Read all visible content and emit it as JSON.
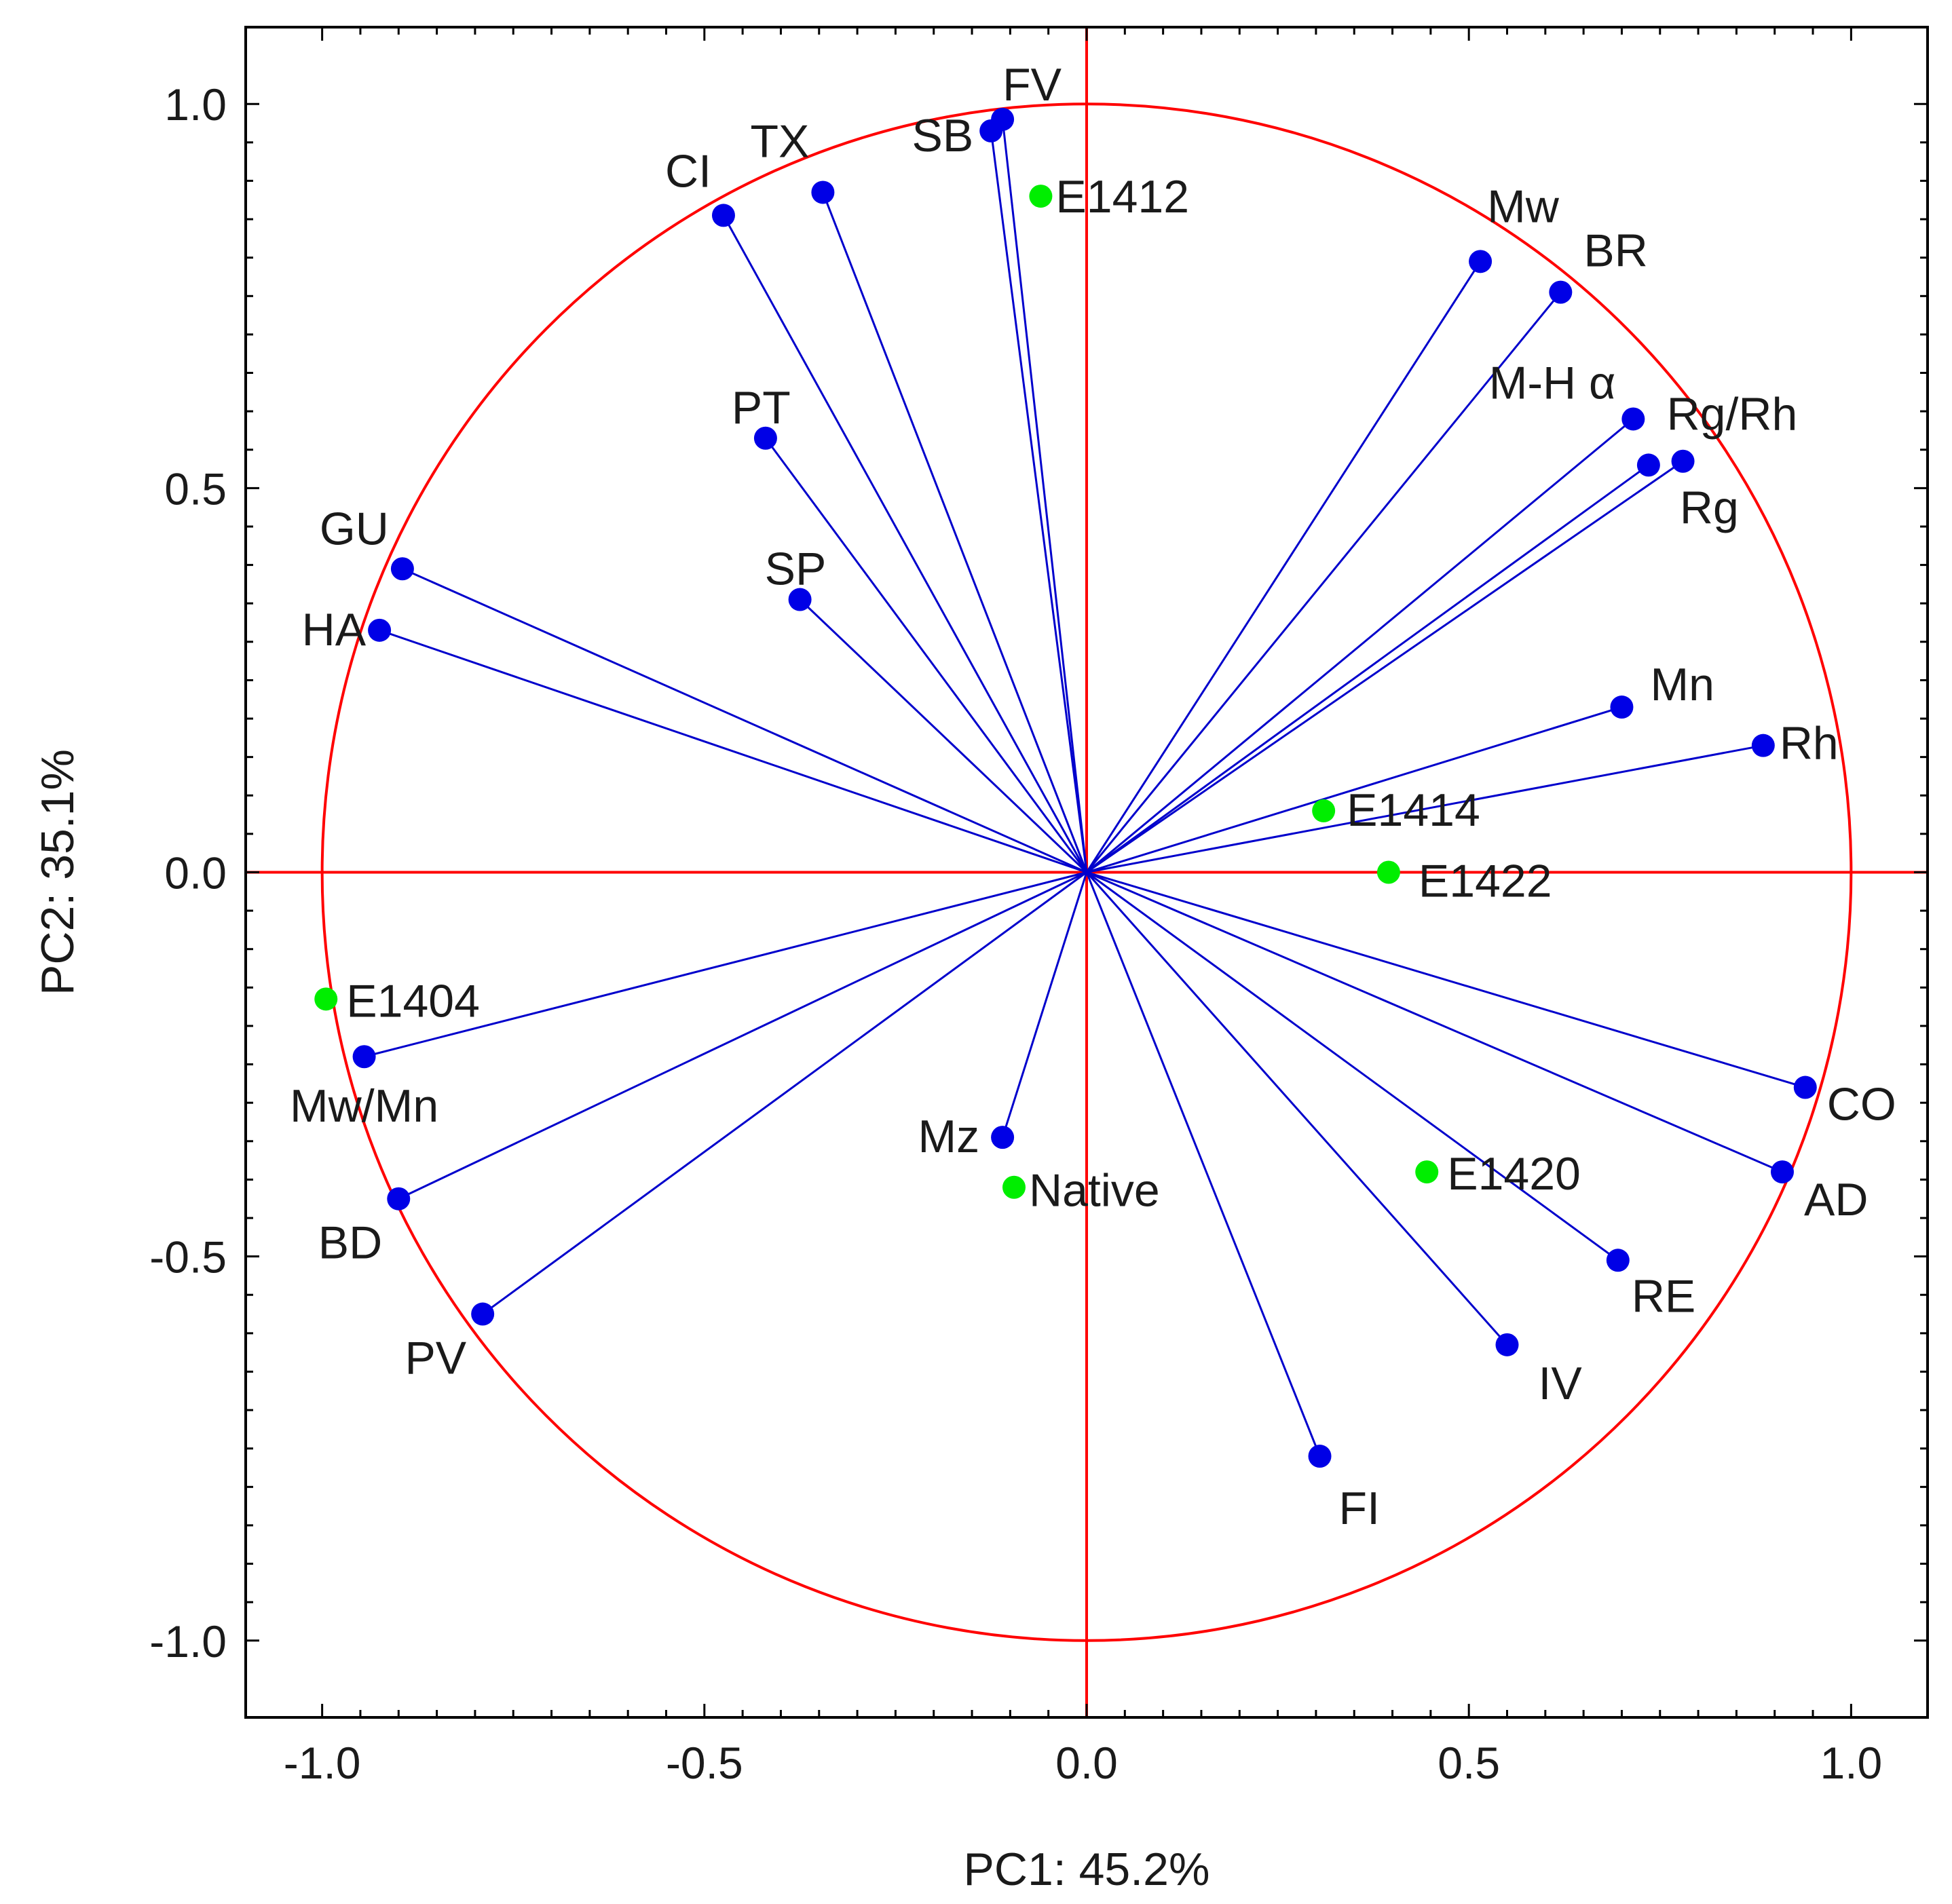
{
  "chart_data": {
    "type": "scatter",
    "subtype": "pca-loading-plot",
    "title": "",
    "xlabel": "PC1: 45.2%",
    "ylabel": "PC2: 35.1%",
    "xlim": [
      -1.1,
      1.1
    ],
    "ylim": [
      -1.1,
      1.1
    ],
    "xticks": [
      "-1.0",
      "-0.5",
      "0.0",
      "0.5",
      "1.0"
    ],
    "yticks": [
      "1.0",
      "0.5",
      "0.0",
      "-0.5",
      "-1.0"
    ],
    "colors": {
      "circle": "#ff0000",
      "axes_zero": "#ff0000",
      "vector": "#0000cc",
      "variable_point": "#0000e6",
      "sample_point": "#00ee00",
      "frame": "#000000"
    },
    "series": [
      {
        "name": "variables",
        "points": [
          {
            "label": "FV",
            "x": -0.11,
            "y": 0.98
          },
          {
            "label": "SB",
            "x": -0.125,
            "y": 0.965
          },
          {
            "label": "TX",
            "x": -0.345,
            "y": 0.885
          },
          {
            "label": "CI",
            "x": -0.475,
            "y": 0.855
          },
          {
            "label": "PT",
            "x": -0.42,
            "y": 0.565
          },
          {
            "label": "SP",
            "x": -0.375,
            "y": 0.355
          },
          {
            "label": "GU",
            "x": -0.895,
            "y": 0.395
          },
          {
            "label": "HA",
            "x": -0.925,
            "y": 0.315
          },
          {
            "label": "Mw",
            "x": 0.515,
            "y": 0.795
          },
          {
            "label": "BR",
            "x": 0.62,
            "y": 0.755
          },
          {
            "label": "M-H α",
            "x": 0.715,
            "y": 0.59
          },
          {
            "label": "Rg/Rh",
            "x": 0.78,
            "y": 0.535
          },
          {
            "label": "Rg",
            "x": 0.735,
            "y": 0.53
          },
          {
            "label": "Mn",
            "x": 0.7,
            "y": 0.215
          },
          {
            "label": "Rh",
            "x": 0.885,
            "y": 0.165
          },
          {
            "label": "CO",
            "x": 0.94,
            "y": -0.28
          },
          {
            "label": "AD",
            "x": 0.91,
            "y": -0.39
          },
          {
            "label": "RE",
            "x": 0.695,
            "y": -0.505
          },
          {
            "label": "IV",
            "x": 0.55,
            "y": -0.615
          },
          {
            "label": "FI",
            "x": 0.305,
            "y": -0.76
          },
          {
            "label": "Mz",
            "x": -0.11,
            "y": -0.345
          },
          {
            "label": "PV",
            "x": -0.79,
            "y": -0.575
          },
          {
            "label": "BD",
            "x": -0.9,
            "y": -0.425
          },
          {
            "label": "Mw/Mn",
            "x": -0.945,
            "y": -0.24
          }
        ]
      },
      {
        "name": "samples",
        "points": [
          {
            "label": "E1412",
            "x": -0.06,
            "y": 0.88
          },
          {
            "label": "E1414",
            "x": 0.31,
            "y": 0.08
          },
          {
            "label": "E1422",
            "x": 0.395,
            "y": 0.0
          },
          {
            "label": "E1404",
            "x": -0.995,
            "y": -0.165
          },
          {
            "label": "E1420",
            "x": 0.445,
            "y": -0.39
          },
          {
            "label": "Native",
            "x": -0.095,
            "y": -0.41
          }
        ]
      }
    ]
  }
}
